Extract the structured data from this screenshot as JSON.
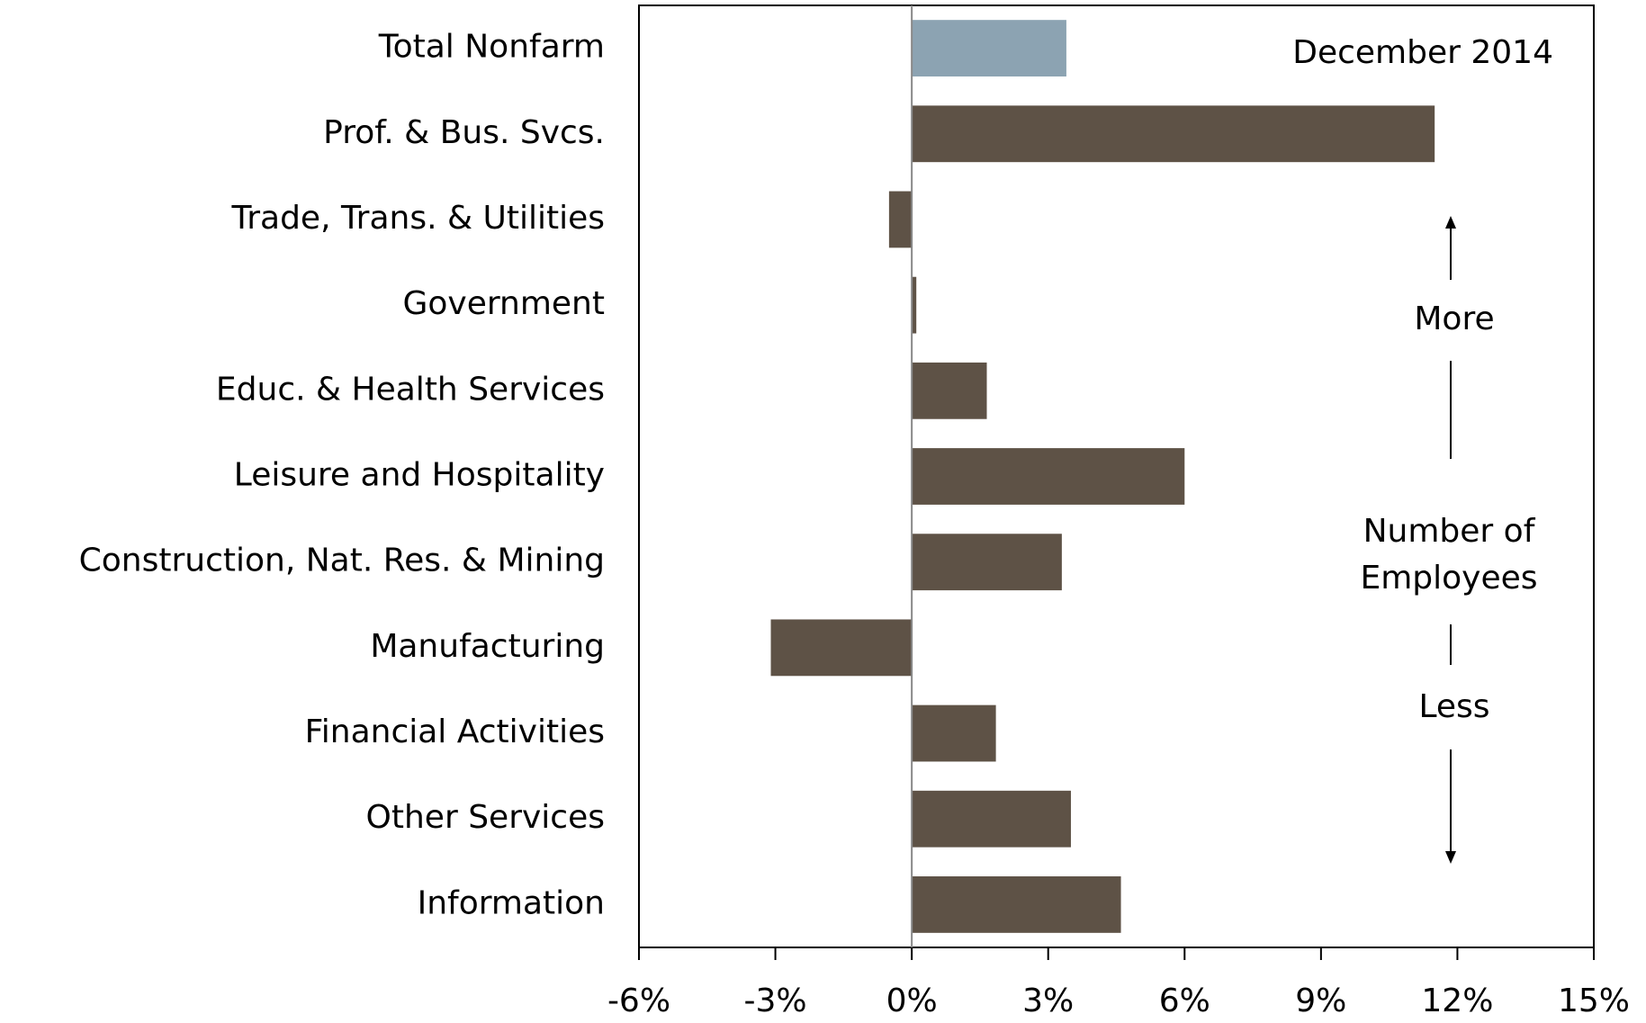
{
  "chart_data": {
    "type": "barh",
    "categories": [
      "Total Nonfarm",
      "Prof. & Bus. Svcs.",
      "Trade, Trans. & Utilities",
      "Government",
      "Educ. & Health Services",
      "Leisure and Hospitality",
      "Construction, Nat. Res. & Mining",
      "Manufacturing",
      "Financial Activities",
      "Other Services",
      "Information"
    ],
    "values": [
      3.4,
      11.5,
      -0.5,
      0.1,
      1.65,
      6.0,
      3.3,
      -3.1,
      1.85,
      3.5,
      4.6
    ],
    "colors": [
      "#8ca3b2",
      "#5e5246",
      "#5e5246",
      "#5e5246",
      "#5e5246",
      "#5e5246",
      "#5e5246",
      "#5e5246",
      "#5e5246",
      "#5e5246",
      "#5e5246"
    ],
    "xlim": [
      -6,
      15
    ],
    "xticks": [
      {
        "value": -6,
        "label": "-6%"
      },
      {
        "value": -3,
        "label": "-3%"
      },
      {
        "value": 0,
        "label": "0%"
      },
      {
        "value": 3,
        "label": "3%"
      },
      {
        "value": 6,
        "label": "6%"
      },
      {
        "value": 9,
        "label": "9%"
      },
      {
        "value": 12,
        "label": "12%"
      },
      {
        "value": 15,
        "label": "15%"
      }
    ],
    "annotations": [
      "December 2014",
      "More",
      "Number of",
      "Employees",
      "Less"
    ]
  }
}
